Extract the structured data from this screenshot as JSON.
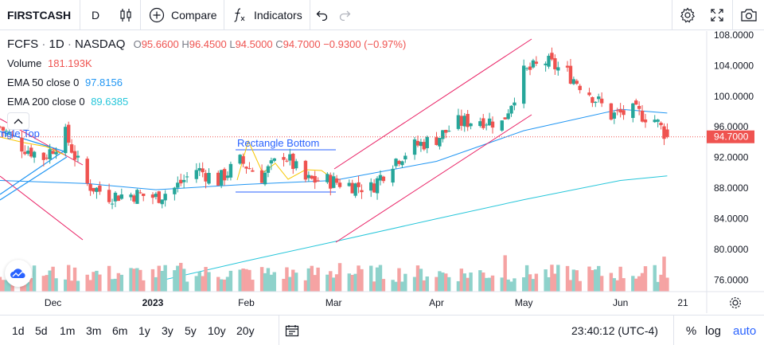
{
  "toolbar": {
    "symbol": "FIRSTCASH",
    "interval": "D",
    "compare_label": "Compare",
    "indicators_label": "Indicators",
    "icons": [
      "candles-icon",
      "plus-circle-icon",
      "fx-icon",
      "undo-icon",
      "redo-icon",
      "settings-icon",
      "fullscreen-icon",
      "camera-icon"
    ]
  },
  "legend": {
    "symbol": "FCFS",
    "interval": "1D",
    "exchange": "NASDAQ",
    "open_key": "O",
    "open": "95.6600",
    "high_key": "H",
    "high": "96.4500",
    "low_key": "L",
    "low": "94.5000",
    "close_key": "C",
    "close": "94.7000",
    "change": "−0.9300 (−0.97%)",
    "volume_label": "Volume",
    "volume_value": "181.193K",
    "ema50_label": "EMA 50 close 0",
    "ema50_value": "97.8156",
    "ema200_label": "EMA 200 close 0",
    "ema200_value": "89.6385"
  },
  "drawings": {
    "rect_top_label": "ngle Top",
    "rect_bottom_label": "Rectangle Bottom"
  },
  "bottom": {
    "ranges": [
      "1d",
      "5d",
      "1m",
      "3m",
      "6m",
      "1y",
      "3y",
      "5y",
      "10y",
      "20y"
    ],
    "clock": "23:40:12 (UTC-4)",
    "percent_label": "%",
    "log_label": "log",
    "auto_label": "auto"
  },
  "colors": {
    "up": "#26a69a",
    "down": "#ef5350",
    "vol_up": "#8ed2cb",
    "vol_down": "#f5a3a3",
    "ema50": "#2196f3",
    "ema200": "#26c6da",
    "channel": "#e91e63",
    "pattern": "#f7c700",
    "pattern_text": "#2962ff",
    "last_price_bg": "#ef5350",
    "accent": "#2962ff"
  },
  "chart_data": {
    "type": "candlestick",
    "symbol": "FCFS",
    "interval": "1D",
    "ylim": [
      74.5,
      108.5
    ],
    "y_ticks": [
      "108.0000",
      "104.0000",
      "100.0000",
      "96.0000",
      "92.0000",
      "88.0000",
      "84.0000",
      "80.0000",
      "76.0000"
    ],
    "x_ticks": [
      "Dec",
      "2023",
      "Feb",
      "Mar",
      "Apr",
      "May",
      "Jun",
      "21"
    ],
    "last_price": 94.7,
    "last_price_label": "94.7000",
    "close_path": [
      [
        "2022-11-14",
        96.0
      ],
      [
        "2022-11-21",
        93.5
      ],
      [
        "2022-11-28",
        92.0
      ],
      [
        "2022-12-05",
        95.0
      ],
      [
        "2022-12-12",
        88.5
      ],
      [
        "2022-12-19",
        87.0
      ],
      [
        "2022-12-27",
        87.2
      ],
      [
        "2023-01-03",
        86.8
      ],
      [
        "2023-01-09",
        88.0
      ],
      [
        "2023-01-16",
        90.5
      ],
      [
        "2023-01-23",
        89.0
      ],
      [
        "2023-01-30",
        91.5
      ],
      [
        "2023-02-06",
        89.5
      ],
      [
        "2023-02-13",
        92.5
      ],
      [
        "2023-02-20",
        89.0
      ],
      [
        "2023-02-27",
        89.0
      ],
      [
        "2023-03-06",
        88.5
      ],
      [
        "2023-03-13",
        88.0
      ],
      [
        "2023-03-20",
        91.5
      ],
      [
        "2023-03-27",
        93.5
      ],
      [
        "2023-04-03",
        94.5
      ],
      [
        "2023-04-10",
        96.5
      ],
      [
        "2023-04-17",
        97.0
      ],
      [
        "2023-04-24",
        96.5
      ],
      [
        "2023-05-01",
        103.0
      ],
      [
        "2023-05-08",
        104.5
      ],
      [
        "2023-05-15",
        103.0
      ],
      [
        "2023-05-22",
        100.5
      ],
      [
        "2023-05-29",
        97.5
      ],
      [
        "2023-06-05",
        98.0
      ],
      [
        "2023-06-12",
        97.0
      ],
      [
        "2023-06-16",
        94.7
      ]
    ],
    "ema50_path": [
      [
        "2022-11-14",
        89.0
      ],
      [
        "2022-12-12",
        88.6
      ],
      [
        "2023-01-03",
        87.8
      ],
      [
        "2023-02-01",
        88.5
      ],
      [
        "2023-03-01",
        89.0
      ],
      [
        "2023-04-03",
        91.5
      ],
      [
        "2023-05-01",
        95.5
      ],
      [
        "2023-06-01",
        98.3
      ],
      [
        "2023-06-16",
        97.8
      ]
    ],
    "ema200_path": [
      [
        "2023-01-03",
        75.8
      ],
      [
        "2023-02-01",
        78.5
      ],
      [
        "2023-03-01",
        81.0
      ],
      [
        "2023-04-03",
        84.0
      ],
      [
        "2023-05-01",
        86.5
      ],
      [
        "2023-06-01",
        89.0
      ],
      [
        "2023-06-16",
        89.6
      ]
    ]
  }
}
